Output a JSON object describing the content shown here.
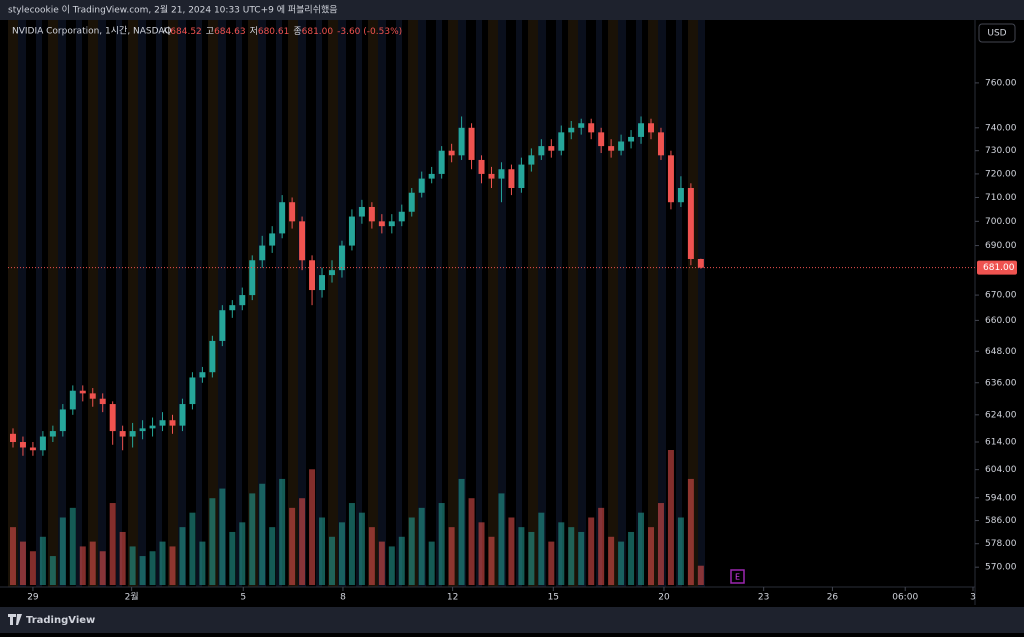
{
  "header": {
    "text": "stylecookie 이 TradingView.com, 2월 21, 2024 10:33 UTC+9 에 퍼블리쉬했음"
  },
  "legend": {
    "symbol": "NVIDIA Corporation, 1시간, NASDAQ",
    "open_label": "시",
    "open": "684.52",
    "high_label": "고",
    "high": "684.63",
    "low_label": "저",
    "low": "680.61",
    "close_label": "종",
    "close": "681.00",
    "change": "-3.60 (-0.53%)"
  },
  "currency_button": "USD",
  "event_marker": "E",
  "footer_brand": "TradingView",
  "chart_data": {
    "type": "candlestick",
    "open": [
      617,
      614,
      612,
      611,
      616,
      618,
      626,
      633,
      632,
      630,
      628,
      618,
      616,
      618,
      619,
      620,
      622,
      620,
      628,
      638,
      640,
      652,
      664,
      666,
      670,
      684,
      690,
      695,
      708,
      700,
      684,
      672,
      678,
      680,
      690,
      702,
      706,
      700,
      698,
      700,
      704,
      712,
      718,
      720,
      730,
      728,
      740,
      726,
      720,
      718,
      722,
      714,
      724,
      728,
      732,
      730,
      738,
      740,
      742,
      738,
      732,
      730,
      734,
      736,
      742,
      738,
      728,
      708,
      714,
      684.52
    ],
    "high": [
      619,
      616,
      614,
      618,
      620,
      628,
      635,
      635,
      634,
      632,
      629,
      620,
      621,
      622,
      623,
      625,
      624,
      630,
      640,
      642,
      654,
      666,
      668,
      673,
      686,
      694,
      698,
      711,
      710,
      702,
      686,
      681,
      684,
      692,
      705,
      709,
      708,
      703,
      703,
      707,
      714,
      721,
      723,
      732,
      733,
      745,
      742,
      728,
      723,
      725,
      724,
      727,
      731,
      735,
      735,
      741,
      743,
      744,
      744,
      740,
      735,
      737,
      739,
      745,
      744,
      740,
      730,
      719,
      716,
      684.63
    ],
    "low": [
      612,
      609,
      609,
      609,
      614,
      616,
      624,
      629,
      627,
      625,
      613,
      611,
      612,
      615,
      616,
      618,
      617,
      618,
      626,
      636,
      638,
      650,
      661,
      664,
      668,
      681,
      687,
      693,
      697,
      680,
      666,
      669,
      675,
      677,
      688,
      699,
      697,
      695,
      695,
      698,
      702,
      710,
      716,
      718,
      725,
      726,
      722,
      716,
      714,
      708,
      711,
      712,
      721,
      726,
      727,
      728,
      735,
      737,
      735,
      729,
      727,
      728,
      731,
      733,
      735,
      726,
      705,
      706,
      682,
      680.61
    ],
    "close": [
      614,
      612,
      611,
      616,
      618,
      626,
      633,
      632,
      630,
      628,
      618,
      616,
      618,
      619,
      620,
      622,
      620,
      628,
      638,
      640,
      652,
      664,
      666,
      670,
      684,
      690,
      695,
      708,
      700,
      684,
      672,
      678,
      680,
      690,
      702,
      706,
      700,
      698,
      700,
      704,
      712,
      718,
      720,
      730,
      728,
      740,
      726,
      720,
      718,
      722,
      714,
      724,
      728,
      732,
      730,
      738,
      740,
      742,
      738,
      732,
      730,
      734,
      736,
      742,
      738,
      728,
      708,
      714,
      684.52,
      681
    ],
    "volume": [
      12,
      9,
      7,
      10,
      6,
      14,
      16,
      8,
      9,
      7,
      17,
      11,
      8,
      6,
      7,
      9,
      8,
      12,
      15,
      9,
      18,
      20,
      11,
      13,
      19,
      21,
      12,
      22,
      16,
      18,
      24,
      14,
      10,
      13,
      17,
      15,
      12,
      9,
      8,
      10,
      14,
      16,
      9,
      17,
      12,
      22,
      18,
      13,
      10,
      19,
      14,
      12,
      11,
      15,
      9,
      13,
      12,
      11,
      14,
      16,
      10,
      9,
      11,
      15,
      12,
      17,
      28,
      14,
      22,
      4
    ],
    "up_color": "#26a69a",
    "down_color": "#ef5350",
    "log_scale": true,
    "xlim": [
      0,
      97
    ],
    "xticks": [
      {
        "value": 2.5,
        "label": "29"
      },
      {
        "value": 12.4,
        "label": "2월"
      },
      {
        "value": 23.6,
        "label": "5"
      },
      {
        "value": 33.6,
        "label": "8"
      },
      {
        "value": 44.6,
        "label": "12"
      },
      {
        "value": 54.7,
        "label": "15"
      },
      {
        "value": 65.8,
        "label": "20"
      },
      {
        "value": 75.8,
        "label": "23"
      },
      {
        "value": 82.7,
        "label": "26"
      },
      {
        "value": 90,
        "label": "06:00"
      },
      {
        "value": 96.8,
        "label": "3"
      }
    ],
    "ylim": [
      564,
      788
    ],
    "yticks": [
      {
        "value": 760,
        "label": "760.00"
      },
      {
        "value": 740,
        "label": "740.00"
      },
      {
        "value": 730,
        "label": "730.00"
      },
      {
        "value": 720,
        "label": "720.00"
      },
      {
        "value": 710,
        "label": "710.00"
      },
      {
        "value": 700,
        "label": "700.00"
      },
      {
        "value": 690,
        "label": "690.00"
      },
      {
        "value": 670,
        "label": "670.00"
      },
      {
        "value": 660,
        "label": "660.00"
      },
      {
        "value": 648,
        "label": "648.00"
      },
      {
        "value": 636,
        "label": "636.00"
      },
      {
        "value": 624,
        "label": "624.00"
      },
      {
        "value": 614,
        "label": "614.00"
      },
      {
        "value": 604,
        "label": "604.00"
      },
      {
        "value": 594,
        "label": "594.00"
      },
      {
        "value": 586,
        "label": "586.00"
      },
      {
        "value": 578,
        "label": "578.00"
      },
      {
        "value": 570,
        "label": "570.00"
      }
    ],
    "last_price": {
      "value": 681,
      "label": "681.00"
    }
  }
}
